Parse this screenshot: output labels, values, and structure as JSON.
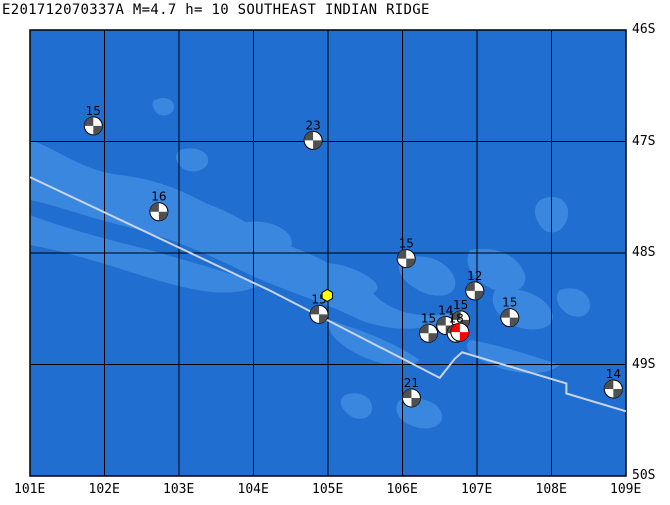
{
  "header": {
    "title": "E201712070337A  M=4.7  h= 10  SOUTHEAST INDIAN RIDGE"
  },
  "axes": {
    "lon_labels": [
      "101E",
      "102E",
      "103E",
      "104E",
      "105E",
      "106E",
      "107E",
      "108E",
      "109E"
    ],
    "lat_labels": [
      "46S",
      "47S",
      "48S",
      "49S",
      "50S"
    ],
    "lon_range": [
      101,
      109
    ],
    "lat_range": [
      46,
      50
    ]
  },
  "colors": {
    "ocean": "#1f6ed0",
    "bathymetry_shallow": "#3a87e0",
    "grid": "#000000",
    "ridge": "#c8d4e8",
    "mechanism_dark": "#505050",
    "mechanism_highlight": "#ff0000",
    "epicenter": "#ffff00"
  },
  "event": {
    "lon": 104.99,
    "lat": 48.38,
    "marker": "yellow-hexagon"
  },
  "ridge_path": [
    [
      101.0,
      47.32
    ],
    [
      104.2,
      48.33
    ],
    [
      106.5,
      49.12
    ],
    [
      106.7,
      48.95
    ],
    [
      106.8,
      48.89
    ],
    [
      108.2,
      49.17
    ],
    [
      108.2,
      49.26
    ],
    [
      109.0,
      49.42
    ]
  ],
  "mechanisms": [
    {
      "label": "15",
      "lon": 101.85,
      "lat": 46.86,
      "highlight": false
    },
    {
      "label": "16",
      "lon": 102.73,
      "lat": 47.63,
      "highlight": false
    },
    {
      "label": "23",
      "lon": 104.8,
      "lat": 46.99,
      "highlight": false
    },
    {
      "label": "15",
      "lon": 106.05,
      "lat": 48.05,
      "highlight": false
    },
    {
      "label": "12",
      "lon": 106.97,
      "lat": 48.34,
      "highlight": false
    },
    {
      "label": "15",
      "lon": 107.44,
      "lat": 48.58,
      "highlight": false
    },
    {
      "label": "15",
      "lon": 104.88,
      "lat": 48.55,
      "highlight": false
    },
    {
      "label": "15",
      "lon": 106.35,
      "lat": 48.72,
      "highlight": false
    },
    {
      "label": "14",
      "lon": 106.58,
      "lat": 48.65,
      "highlight": false
    },
    {
      "label": "15",
      "lon": 106.78,
      "lat": 48.6,
      "highlight": false
    },
    {
      "label": "18",
      "lon": 106.72,
      "lat": 48.72,
      "highlight": false
    },
    {
      "label": "",
      "lon": 106.77,
      "lat": 48.71,
      "highlight": true
    },
    {
      "label": "21",
      "lon": 106.12,
      "lat": 49.3,
      "highlight": false
    },
    {
      "label": "14",
      "lon": 108.83,
      "lat": 49.22,
      "highlight": false
    }
  ]
}
